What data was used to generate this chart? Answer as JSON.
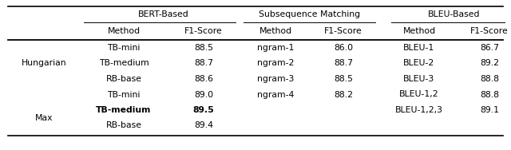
{
  "group_headers": [
    "BERT-Based",
    "Subsequence Matching",
    "BLEU-Based"
  ],
  "col_headers": [
    "Method",
    "F1-Score",
    "Method",
    "F1-Score",
    "Method",
    "F1-Score"
  ],
  "bert_methods": [
    "TB-mini",
    "TB-medium",
    "RB-base",
    "TB-mini",
    "TB-medium",
    "RB-base"
  ],
  "bert_scores": [
    "88.5",
    "88.7",
    "88.6",
    "89.0",
    "89.5",
    "89.4"
  ],
  "bert_bold": [
    false,
    false,
    false,
    false,
    true,
    false
  ],
  "subseq_methods": [
    "ngram-1",
    "ngram-2",
    "ngram-3",
    "ngram-4",
    "",
    ""
  ],
  "subseq_scores": [
    "86.0",
    "88.7",
    "88.5",
    "88.2",
    "",
    ""
  ],
  "bleu_methods": [
    "BLEU-1",
    "BLEU-2",
    "BLEU-3",
    "BLEU-1,2",
    "BLEU-1,2,3",
    ""
  ],
  "bleu_scores": [
    "86.7",
    "89.2",
    "88.8",
    "88.8",
    "89.1",
    ""
  ],
  "row_group_labels": [
    [
      "Hungarian",
      0,
      2
    ],
    [
      "Max",
      4,
      5
    ]
  ],
  "background_color": "#ffffff",
  "font_family": "DejaVu Sans",
  "header_fs": 7.8,
  "data_fs": 7.8
}
